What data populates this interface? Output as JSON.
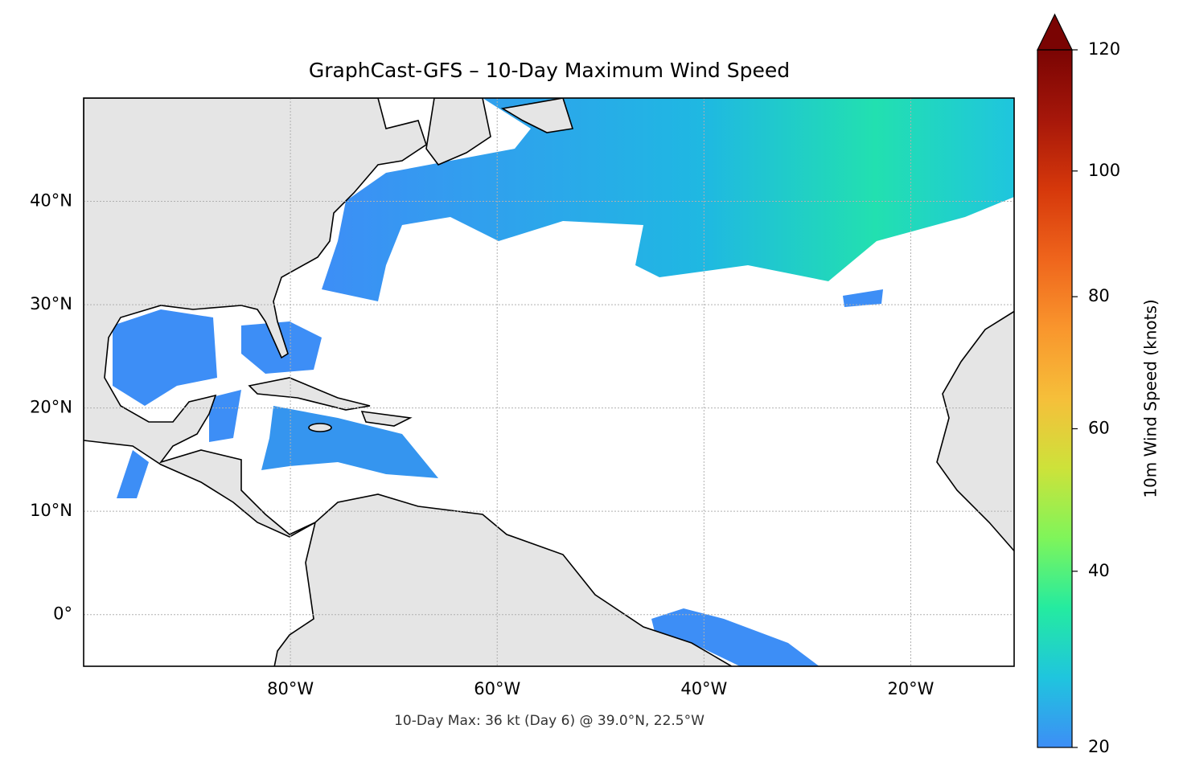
{
  "chart_data": {
    "type": "map",
    "title": "GraphCast-GFS – 10-Day Maximum Wind Speed",
    "annotation": "10-Day Max: 36 kt (Day 6) @ 39.0°N, 22.5°W",
    "xlim": [
      -100,
      -10
    ],
    "ylim": [
      -5,
      50
    ],
    "xticks": [
      {
        "value": -80,
        "label": "80°W"
      },
      {
        "value": -60,
        "label": "60°W"
      },
      {
        "value": -40,
        "label": "40°W"
      },
      {
        "value": -20,
        "label": "20°W"
      }
    ],
    "yticks": [
      {
        "value": 0,
        "label": "0°"
      },
      {
        "value": 10,
        "label": "10°N"
      },
      {
        "value": 20,
        "label": "20°N"
      },
      {
        "value": 30,
        "label": "30°N"
      },
      {
        "value": 40,
        "label": "40°N"
      }
    ],
    "grid": true,
    "colorbar": {
      "label": "10m Wind Speed (knots)",
      "lim": [
        20,
        120
      ],
      "ticks": [
        20,
        40,
        60,
        80,
        100,
        120
      ],
      "norm": "power",
      "gamma": 0.855,
      "extend": "max",
      "colors": [
        "#3d8ef6",
        "#1fc5de",
        "#24eba0",
        "#7ff55a",
        "#cde23a",
        "#f6bf3a",
        "#f9962d",
        "#ef651c",
        "#d6380b",
        "#a6170a",
        "#7a0403"
      ]
    }
  }
}
